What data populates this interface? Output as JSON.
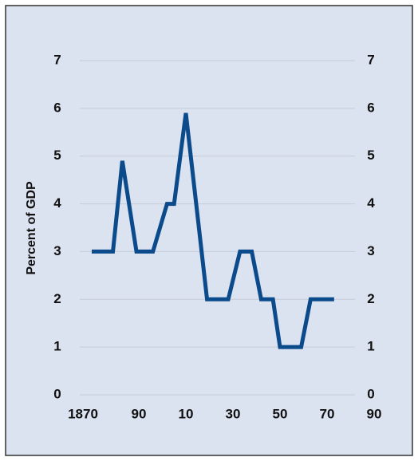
{
  "chart_data": {
    "type": "line",
    "y_label": "Percent of GDP",
    "x": [
      1870,
      1879,
      1883,
      1889,
      1896,
      1902,
      1905,
      1910,
      1919,
      1928,
      1933,
      1938,
      1942,
      1947,
      1950,
      1959,
      1963,
      1973
    ],
    "series": [
      {
        "name": "Percent of GDP",
        "color": "#0b4a8b",
        "values": [
          3,
          3,
          4.9,
          3,
          3,
          4,
          4,
          5.9,
          2,
          2,
          3,
          3,
          2,
          2,
          1,
          1,
          2,
          2
        ]
      }
    ],
    "xlim": [
      1870,
      1990
    ],
    "xticks": [
      1870,
      {
        "value": 1890,
        "label": "90"
      },
      {
        "value": 1910,
        "label": "10"
      },
      {
        "value": 1930,
        "label": "30"
      },
      {
        "value": 1950,
        "label": "50"
      },
      {
        "value": 1970,
        "label": "70"
      },
      {
        "value": 1990,
        "label": "90"
      }
    ],
    "ylim": [
      0,
      7
    ],
    "yticks": [
      0,
      1,
      2,
      3,
      4,
      5,
      6,
      7
    ],
    "y2lim": [
      0,
      7
    ],
    "y2ticks": [
      0,
      1,
      2,
      3,
      4,
      5,
      6,
      7
    ],
    "grid": true
  }
}
